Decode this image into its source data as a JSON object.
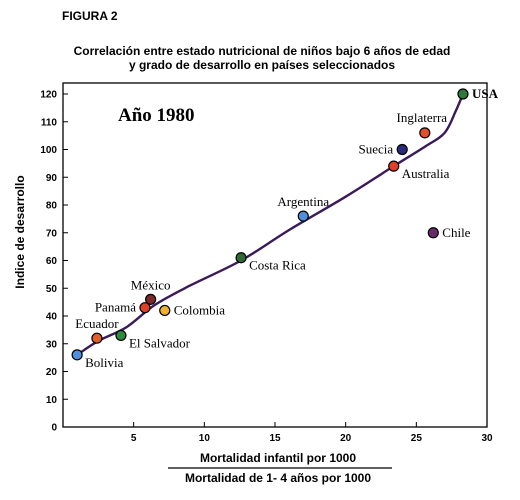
{
  "figure_label": "FIGURA 2",
  "chart_data": {
    "type": "scatter",
    "title": "Correlación entre estado nutricional de niños bajo 6 años de edad\ny grado de desarrollo en países seleccionados",
    "title_lines": [
      "Correlación entre estado nutricional de niños bajo 6 años de edad",
      "y grado de desarrollo en países seleccionados"
    ],
    "annotation": "Año 1980",
    "ylabel": "Indice de desarrollo",
    "xlabel_numerator": "Mortalidad infantil por 1000",
    "xlabel_denominator": "Mortalidad de 1- 4 años por 1000",
    "xlim": [
      0,
      30
    ],
    "ylim": [
      0,
      125
    ],
    "xticks": [
      5,
      10,
      15,
      20,
      25,
      30
    ],
    "yticks": [
      0,
      10,
      20,
      30,
      40,
      50,
      60,
      70,
      80,
      90,
      100,
      110,
      120
    ],
    "grid": false,
    "legend": "none",
    "points": [
      {
        "label": "Bolivia",
        "x": 1.0,
        "y": 26,
        "color": "#4f8fdc",
        "label_pos": "right-below"
      },
      {
        "label": "Ecuador",
        "x": 2.4,
        "y": 32,
        "color": "#e0602a",
        "label_pos": "above"
      },
      {
        "label": "El Salvador",
        "x": 4.1,
        "y": 33,
        "color": "#2f8a3e",
        "label_pos": "right-below"
      },
      {
        "label": "Panamá",
        "x": 5.8,
        "y": 43,
        "color": "#e0402a",
        "label_pos": "left"
      },
      {
        "label": "México",
        "x": 6.2,
        "y": 46,
        "color": "#7a2a28",
        "label_pos": "above"
      },
      {
        "label": "Colombia",
        "x": 7.2,
        "y": 42,
        "color": "#f0b030",
        "label_pos": "right"
      },
      {
        "label": "Costa Rica",
        "x": 12.6,
        "y": 61,
        "color": "#2f6a35",
        "label_pos": "right-below"
      },
      {
        "label": "Argentina",
        "x": 17.0,
        "y": 76,
        "color": "#4f8fdc",
        "label_pos": "above"
      },
      {
        "label": "Australia",
        "x": 23.4,
        "y": 94,
        "color": "#e0402a",
        "label_pos": "right-below"
      },
      {
        "label": "Suecia",
        "x": 24.0,
        "y": 100,
        "color": "#2a2a7a",
        "label_pos": "left"
      },
      {
        "label": "Inglaterra",
        "x": 25.6,
        "y": 106,
        "color": "#e0502a",
        "label_pos": "above-left"
      },
      {
        "label": "Chile",
        "x": 26.2,
        "y": 70,
        "color": "#6a2a6a",
        "label_pos": "right"
      },
      {
        "label": "USA",
        "x": 28.3,
        "y": 120,
        "color": "#2f7a3a",
        "label_pos": "right"
      }
    ],
    "trend_curve": [
      [
        1.0,
        26
      ],
      [
        2.5,
        31
      ],
      [
        4.5,
        36
      ],
      [
        6.5,
        44
      ],
      [
        9.0,
        51
      ],
      [
        12.6,
        60
      ],
      [
        16.0,
        71
      ],
      [
        20.0,
        83
      ],
      [
        23.4,
        94
      ],
      [
        25.6,
        101
      ],
      [
        27.0,
        106
      ],
      [
        27.8,
        114
      ],
      [
        28.3,
        120
      ]
    ]
  }
}
